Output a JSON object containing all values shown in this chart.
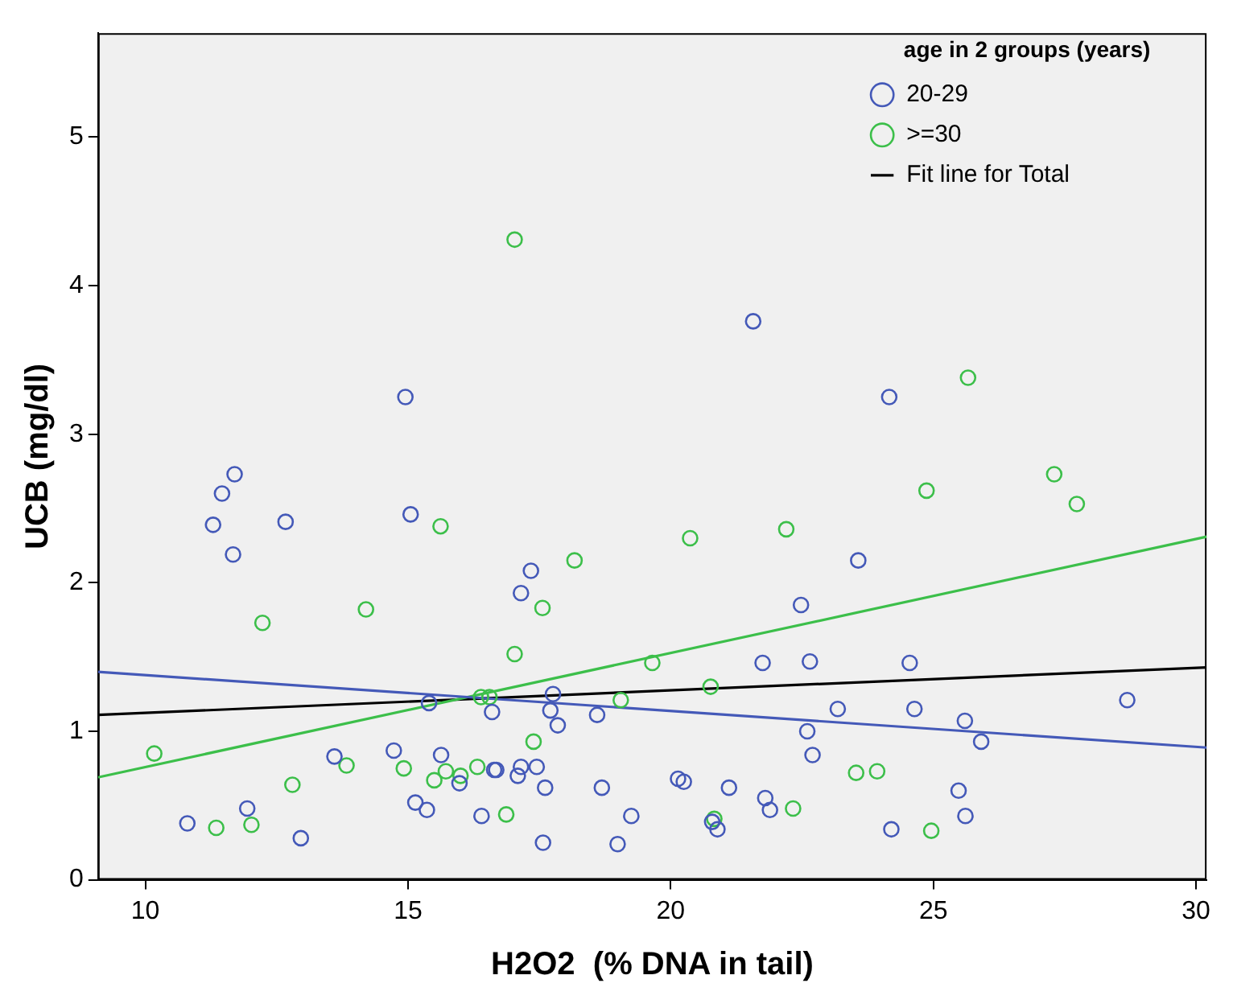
{
  "chart_data": {
    "type": "scatter",
    "xlabel": "H2O2  (% DNA in tail)",
    "ylabel": "UCB (mg/dl)",
    "legend_title": "age in 2 groups (years)",
    "legend": "top right",
    "marker": "circle",
    "grid": false,
    "xlim": [
      9.1,
      30.2
    ],
    "xticks": [
      10,
      15,
      20,
      25,
      30
    ],
    "ylim": [
      0,
      5.7
    ],
    "yticks": [
      0,
      1,
      2,
      3,
      4,
      5
    ],
    "series": [
      {
        "name": "20-29",
        "color": "#4459b8",
        "x": [
          10.8,
          11.94,
          12.96,
          11.67,
          13.6,
          14.73,
          15.63,
          15.14,
          15.36,
          15.98,
          16.4,
          15.4,
          16.6,
          16.64,
          14.95,
          11.7,
          11.46,
          11.29,
          12.67,
          15.05,
          21.57,
          24.16,
          23.57,
          17.34,
          17.15,
          21.75,
          22.65,
          17.76,
          17.71,
          17.85,
          18.6,
          23.18,
          22.6,
          22.7,
          22.48,
          16.68,
          17.15,
          17.09,
          17.45,
          17.61,
          18.69,
          20.14,
          20.25,
          21.11,
          21.8,
          21.89,
          19.25,
          20.79,
          20.89,
          17.57,
          18.99,
          24.2,
          24.55,
          24.64,
          25.6,
          25.91,
          28.69,
          25.48,
          25.61
        ],
        "values": [
          0.38,
          0.48,
          0.28,
          2.19,
          0.83,
          0.87,
          0.84,
          0.52,
          0.47,
          0.65,
          0.43,
          1.19,
          1.13,
          0.74,
          3.25,
          2.73,
          2.6,
          2.39,
          2.41,
          2.46,
          3.76,
          3.25,
          2.15,
          2.08,
          1.93,
          1.46,
          1.47,
          1.25,
          1.14,
          1.04,
          1.11,
          1.15,
          1.0,
          0.84,
          1.85,
          0.74,
          0.76,
          0.7,
          0.76,
          0.62,
          0.62,
          0.68,
          0.66,
          0.62,
          0.55,
          0.47,
          0.43,
          0.39,
          0.34,
          0.25,
          0.24,
          0.34,
          1.46,
          1.15,
          1.07,
          0.93,
          1.21,
          0.6,
          0.43
        ]
      },
      {
        "name": ">=30",
        "color": "#3cbf4a",
        "x": [
          15.62,
          17.03,
          18.17,
          20.37,
          22.2,
          25.66,
          24.87,
          27.3,
          27.73,
          12.23,
          14.2,
          10.17,
          11.35,
          12.02,
          12.8,
          13.83,
          14.92,
          15.72,
          16.0,
          15.5,
          16.32,
          16.39,
          16.55,
          17.56,
          17.03,
          19.65,
          20.76,
          19.05,
          17.39,
          22.33,
          23.53,
          23.93,
          16.87,
          20.83,
          24.96
        ],
        "values": [
          2.38,
          4.31,
          2.15,
          2.3,
          2.36,
          3.38,
          2.62,
          2.73,
          2.53,
          1.73,
          1.82,
          0.85,
          0.35,
          0.37,
          0.64,
          0.77,
          0.75,
          0.73,
          0.7,
          0.67,
          0.76,
          1.23,
          1.23,
          1.83,
          1.52,
          1.46,
          1.3,
          1.21,
          0.93,
          0.48,
          0.72,
          0.73,
          0.44,
          0.41,
          0.33
        ]
      },
      {
        "type": "line",
        "marker": "none",
        "color": "#4459b8",
        "x": [
          9.1,
          30.2
        ],
        "values": [
          1.4,
          0.89
        ]
      },
      {
        "type": "line",
        "marker": "none",
        "color": "#3cbf4a",
        "x": [
          9.1,
          30.2
        ],
        "values": [
          0.69,
          2.31
        ]
      },
      {
        "type": "line",
        "marker": "none",
        "name": "Fit line for Total",
        "color": "#000000",
        "x": [
          9.1,
          30.2
        ],
        "values": [
          1.11,
          1.43
        ]
      }
    ]
  }
}
